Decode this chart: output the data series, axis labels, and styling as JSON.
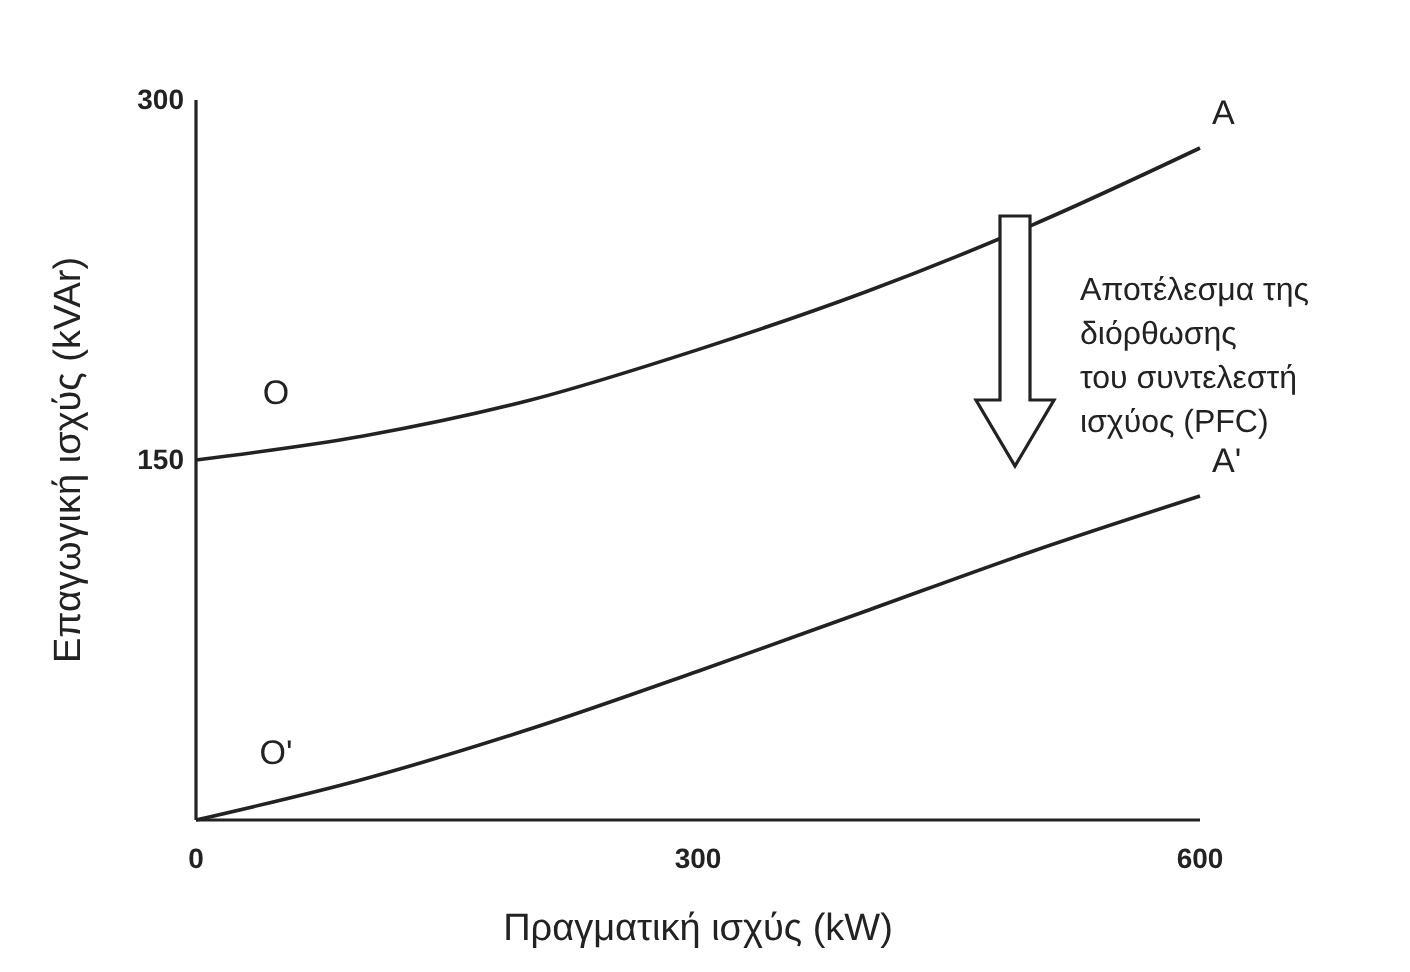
{
  "chart_data": {
    "type": "line",
    "xlabel": "Πραγματική ισχύς (kW)",
    "ylabel": "Επαγωγική ισχύς (kVAr)",
    "x": [
      0,
      100,
      200,
      300,
      400,
      500,
      600
    ],
    "series": [
      {
        "color": "#222222",
        "values": [
          150,
          160,
          175,
          196,
          220,
          248,
          280
        ]
      },
      {
        "color": "#222222",
        "values": [
          0,
          17,
          38,
          62,
          87,
          112,
          135
        ]
      }
    ],
    "xlim": [
      0,
      600
    ],
    "ylim": [
      0,
      300
    ],
    "xticks": [
      0,
      300,
      600
    ],
    "yticks": [
      150,
      300
    ],
    "grid": false,
    "marker": "none",
    "line_style": "solid",
    "annotations": [
      "O",
      "A",
      "O'",
      "A'",
      "Αποτέλεσμα της\nδιόρθωσης\nτου συντελεστή\nισχύος (PFC)"
    ]
  }
}
